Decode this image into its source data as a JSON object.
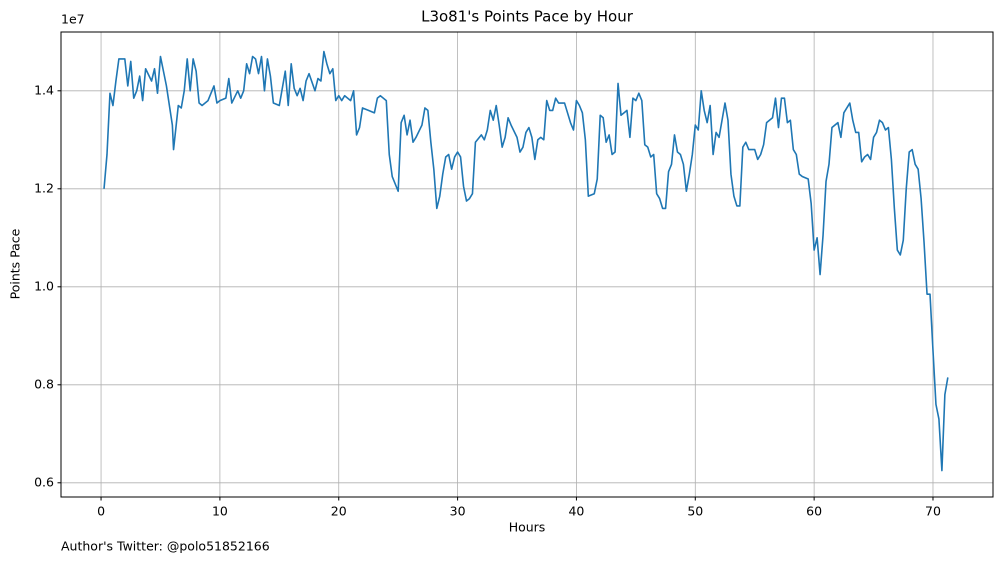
{
  "chart_data": {
    "type": "line",
    "title": "L3o81's Points Pace by Hour",
    "x_label": "Hours",
    "y_label": "Points Pace",
    "y_offset_label": "1e7",
    "footer": "Author's Twitter: @polo51852166",
    "grid": true,
    "xlim": [
      -3.37,
      75.05
    ],
    "ylim": [
      5710000,
      15200000
    ],
    "xticks": [
      0,
      10,
      20,
      30,
      40,
      50,
      60,
      70
    ],
    "yticks": [
      {
        "value": 6000000,
        "label": "0.6"
      },
      {
        "value": 8000000,
        "label": "0.8"
      },
      {
        "value": 10000000,
        "label": "1.0"
      },
      {
        "value": 12000000,
        "label": "1.2"
      },
      {
        "value": 14000000,
        "label": "1.4"
      }
    ],
    "x": [
      0.25,
      0.5,
      0.75,
      1,
      1.25,
      1.5,
      2,
      2.25,
      2.5,
      2.75,
      3,
      3.25,
      3.5,
      3.75,
      4.25,
      4.5,
      4.75,
      5,
      5.5,
      6,
      6.1,
      6.5,
      6.75,
      7,
      7.25,
      7.5,
      7.75,
      8,
      8.25,
      8.5,
      9,
      9.5,
      9.75,
      10,
      10.5,
      10.75,
      11,
      11.5,
      11.75,
      12,
      12.25,
      12.5,
      12.75,
      13,
      13.25,
      13.5,
      13.75,
      14,
      14.25,
      14.5,
      15,
      15.5,
      15.75,
      16,
      16.25,
      16.5,
      16.75,
      17,
      17.25,
      17.5,
      18,
      18.25,
      18.5,
      18.75,
      19,
      19.25,
      19.5,
      19.75,
      20,
      20.25,
      20.5,
      21,
      21.25,
      21.5,
      21.75,
      22,
      22.5,
      23,
      23.25,
      23.5,
      24,
      24.25,
      24.5,
      25,
      25.25,
      25.5,
      25.75,
      26,
      26.25,
      26.5,
      27,
      27.25,
      27.5,
      27.75,
      28,
      28.25,
      28.5,
      28.75,
      29,
      29.25,
      29.5,
      29.75,
      30,
      30.25,
      30.5,
      30.75,
      31,
      31.25,
      31.5,
      32,
      32.25,
      32.5,
      32.75,
      33,
      33.25,
      33.5,
      33.75,
      34,
      34.25,
      34.5,
      35,
      35.25,
      35.5,
      35.75,
      36,
      36.25,
      36.5,
      36.75,
      37,
      37.25,
      37.5,
      37.75,
      38,
      38.25,
      38.5,
      39,
      39.5,
      39.75,
      40,
      40.25,
      40.5,
      40.75,
      41,
      41.5,
      41.75,
      42,
      42.25,
      42.5,
      42.75,
      43,
      43.25,
      43.5,
      43.75,
      44,
      44.25,
      44.5,
      44.75,
      45,
      45.25,
      45.5,
      45.75,
      46,
      46.25,
      46.5,
      46.75,
      47,
      47.25,
      47.5,
      47.75,
      48,
      48.25,
      48.5,
      48.75,
      49,
      49.25,
      49.5,
      49.75,
      50,
      50.25,
      50.5,
      50.75,
      51,
      51.25,
      51.5,
      51.75,
      52,
      52.25,
      52.5,
      52.75,
      53,
      53.25,
      53.5,
      53.75,
      54,
      54.25,
      54.5,
      55,
      55.25,
      55.5,
      55.75,
      56,
      56.5,
      56.75,
      57,
      57.25,
      57.5,
      57.75,
      58,
      58.25,
      58.5,
      58.75,
      59,
      59.5,
      59.75,
      60,
      60.25,
      60.5,
      60.75,
      61,
      61.25,
      61.5,
      62,
      62.25,
      62.5,
      63,
      63.25,
      63.5,
      63.75,
      64,
      64.25,
      64.5,
      64.75,
      65,
      65.25,
      65.5,
      65.75,
      66,
      66.25,
      66.5,
      66.75,
      67,
      67.25,
      67.5,
      67.75,
      68,
      68.25,
      68.5,
      68.75,
      69,
      69.25,
      69.5,
      69.75,
      70,
      70.25,
      70.5,
      70.75,
      71,
      71.25
    ],
    "series": [
      {
        "name": "Points Pace",
        "color": "#1f77b4",
        "values": [
          12000000,
          12700000,
          13950000,
          13700000,
          14200000,
          14650000,
          14650000,
          14100000,
          14600000,
          13850000,
          14000000,
          14300000,
          13800000,
          14450000,
          14200000,
          14450000,
          13950000,
          14700000,
          14100000,
          13300000,
          12800000,
          13700000,
          13650000,
          14000000,
          14650000,
          14000000,
          14650000,
          14400000,
          13750000,
          13700000,
          13800000,
          14100000,
          13750000,
          13800000,
          13850000,
          14250000,
          13750000,
          14000000,
          13850000,
          14000000,
          14550000,
          14350000,
          14700000,
          14650000,
          14350000,
          14700000,
          14000000,
          14650000,
          14300000,
          13750000,
          13700000,
          14400000,
          13700000,
          14550000,
          14050000,
          13900000,
          14050000,
          13800000,
          14200000,
          14350000,
          14000000,
          14250000,
          14200000,
          14800000,
          14550000,
          14350000,
          14450000,
          13800000,
          13900000,
          13800000,
          13900000,
          13800000,
          14000000,
          13100000,
          13250000,
          13650000,
          13600000,
          13550000,
          13850000,
          13900000,
          13800000,
          12700000,
          12250000,
          11950000,
          13350000,
          13500000,
          13100000,
          13400000,
          12950000,
          13050000,
          13300000,
          13650000,
          13600000,
          12950000,
          12400000,
          11600000,
          11850000,
          12300000,
          12650000,
          12700000,
          12400000,
          12650000,
          12750000,
          12650000,
          12050000,
          11750000,
          11800000,
          11900000,
          12950000,
          13100000,
          13000000,
          13200000,
          13600000,
          13400000,
          13700000,
          13300000,
          12850000,
          13050000,
          13450000,
          13300000,
          13050000,
          12750000,
          12850000,
          13150000,
          13250000,
          13050000,
          12600000,
          13000000,
          13050000,
          13000000,
          13800000,
          13600000,
          13600000,
          13850000,
          13750000,
          13750000,
          13350000,
          13200000,
          13800000,
          13700000,
          13550000,
          13000000,
          11850000,
          11900000,
          12200000,
          13500000,
          13450000,
          12950000,
          13100000,
          12700000,
          12750000,
          14150000,
          13500000,
          13550000,
          13600000,
          13050000,
          13850000,
          13800000,
          13950000,
          13800000,
          12900000,
          12850000,
          12650000,
          12700000,
          11900000,
          11800000,
          11600000,
          11600000,
          12350000,
          12500000,
          13100000,
          12750000,
          12700000,
          12500000,
          11950000,
          12300000,
          12700000,
          13300000,
          13200000,
          14000000,
          13600000,
          13350000,
          13700000,
          12700000,
          13150000,
          13050000,
          13400000,
          13750000,
          13400000,
          12300000,
          11850000,
          11650000,
          11650000,
          12850000,
          12950000,
          12800000,
          12800000,
          12600000,
          12700000,
          12900000,
          13350000,
          13450000,
          13850000,
          13250000,
          13850000,
          13850000,
          13350000,
          13400000,
          12800000,
          12700000,
          12300000,
          12250000,
          12200000,
          11700000,
          10750000,
          11000000,
          10250000,
          11050000,
          12150000,
          12500000,
          13250000,
          13350000,
          13050000,
          13550000,
          13750000,
          13400000,
          13150000,
          13150000,
          12550000,
          12650000,
          12700000,
          12600000,
          13050000,
          13150000,
          13400000,
          13350000,
          13200000,
          13250000,
          12600000,
          11600000,
          10750000,
          10650000,
          10950000,
          12000000,
          12750000,
          12800000,
          12500000,
          12400000,
          11800000,
          10900000,
          9850000,
          9850000,
          8700000,
          7600000,
          7300000,
          6250000,
          7800000,
          8150000
        ]
      }
    ]
  }
}
